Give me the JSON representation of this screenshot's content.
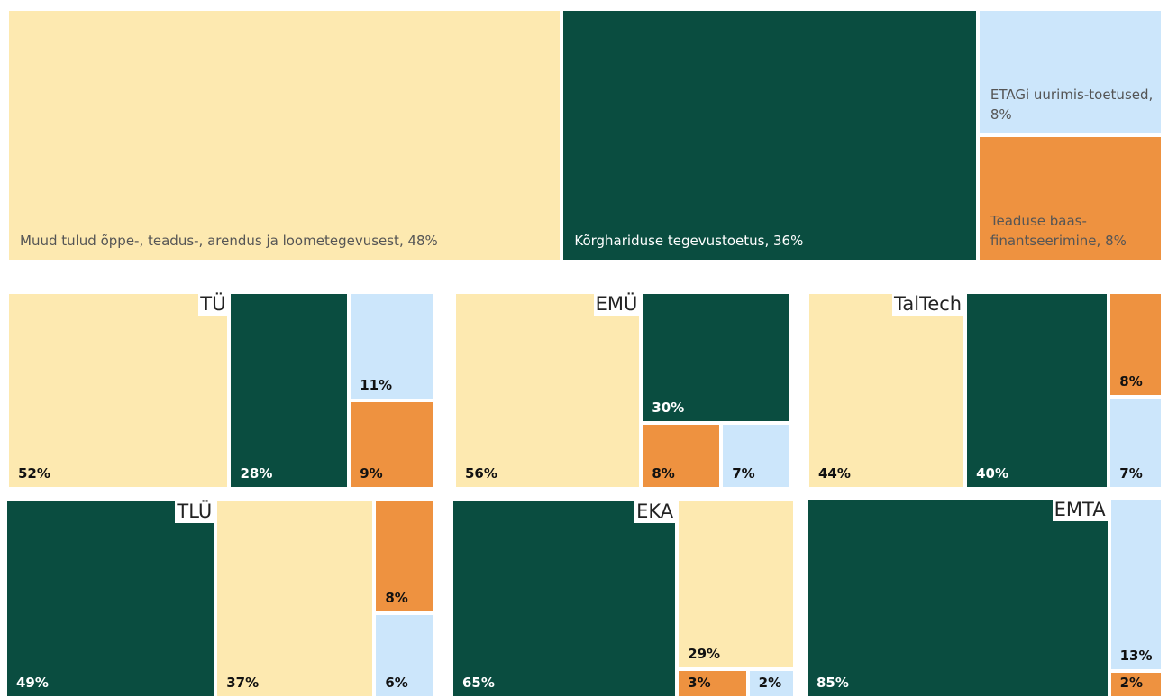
{
  "chart_data": [
    {
      "type": "treemap",
      "categories": [
        "Muud tulud õppe-, teadus-, arendus ja loometegevusest, 48%",
        "Kõrghariduse tegevustoetus, 36%",
        "ETAGi uurimis-toetused, 8%",
        "Teaduse baas-finantseerimine, 8%"
      ],
      "values": [
        48,
        36,
        8,
        8
      ],
      "colors": [
        "#fde9b0",
        "#0a4d40",
        "#cce6fb",
        "#ee9240"
      ]
    },
    {
      "type": "treemap",
      "title": "TÜ",
      "values": [
        52,
        28,
        11,
        9
      ],
      "value_labels": [
        "52%",
        "28%",
        "11%",
        "9%"
      ],
      "colors": [
        "#fde9b0",
        "#0a4d40",
        "#cce6fb",
        "#ee9240"
      ]
    },
    {
      "type": "treemap",
      "title": "EMÜ",
      "values": [
        56,
        30,
        8,
        7
      ],
      "value_labels": [
        "56%",
        "30%",
        "8%",
        "7%"
      ],
      "colors": [
        "#fde9b0",
        "#0a4d40",
        "#ee9240",
        "#cce6fb"
      ]
    },
    {
      "type": "treemap",
      "title": "TalTech",
      "values": [
        44,
        40,
        8,
        7
      ],
      "value_labels": [
        "44%",
        "40%",
        "8%",
        "7%"
      ],
      "colors": [
        "#fde9b0",
        "#0a4d40",
        "#ee9240",
        "#cce6fb"
      ]
    },
    {
      "type": "treemap",
      "title": "TLÜ",
      "values": [
        49,
        37,
        8,
        6
      ],
      "value_labels": [
        "49%",
        "37%",
        "8%",
        "6%"
      ],
      "colors": [
        "#0a4d40",
        "#fde9b0",
        "#ee9240",
        "#cce6fb"
      ]
    },
    {
      "type": "treemap",
      "title": "EKA",
      "values": [
        65,
        29,
        3,
        2
      ],
      "value_labels": [
        "65%",
        "29%",
        "3%",
        "2%"
      ],
      "colors": [
        "#0a4d40",
        "#fde9b0",
        "#ee9240",
        "#cce6fb"
      ]
    },
    {
      "type": "treemap",
      "title": "EMTA",
      "values": [
        85,
        13,
        2
      ],
      "value_labels": [
        "85%",
        "13%",
        "2%"
      ],
      "colors": [
        "#0a4d40",
        "#cce6fb",
        "#ee9240"
      ]
    }
  ]
}
